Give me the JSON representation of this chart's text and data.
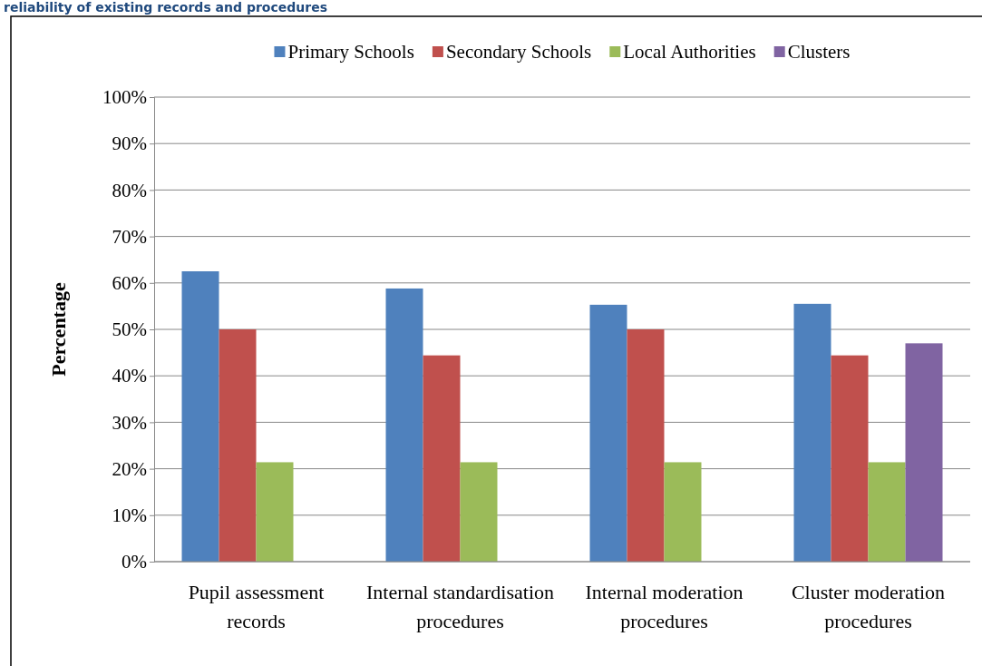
{
  "chart_data": {
    "type": "bar",
    "title": "reliability of existing records and procedures",
    "ylabel": "Percentage",
    "categories": [
      "Pupil assessment records",
      "Internal standardisation procedures",
      "Internal moderation procedures",
      "Cluster moderation procedures"
    ],
    "series": [
      {
        "name": "Primary Schools",
        "color": "#4f81bd",
        "values": [
          62.5,
          58.8,
          55.3,
          55.5
        ]
      },
      {
        "name": "Secondary Schools",
        "color": "#c0504d",
        "values": [
          50,
          44.4,
          50,
          44.4
        ]
      },
      {
        "name": "Local Authorities",
        "color": "#9bbb59",
        "values": [
          21.4,
          21.4,
          21.4,
          21.4
        ]
      },
      {
        "name": "Clusters",
        "color": "#8064a2",
        "values": [
          null,
          null,
          null,
          47
        ]
      }
    ],
    "ylim": [
      0,
      100
    ],
    "yticks": [
      {
        "value": 0,
        "label": "0%"
      },
      {
        "value": 10,
        "label": "10%"
      },
      {
        "value": 20,
        "label": "20%"
      },
      {
        "value": 30,
        "label": "30%"
      },
      {
        "value": 40,
        "label": "40%"
      },
      {
        "value": 50,
        "label": "50%"
      },
      {
        "value": 60,
        "label": "60%"
      },
      {
        "value": 70,
        "label": "70%"
      },
      {
        "value": 80,
        "label": "80%"
      },
      {
        "value": 90,
        "label": "90%"
      },
      {
        "value": 100,
        "label": "100%"
      }
    ],
    "grid": "y",
    "legend": "top"
  }
}
